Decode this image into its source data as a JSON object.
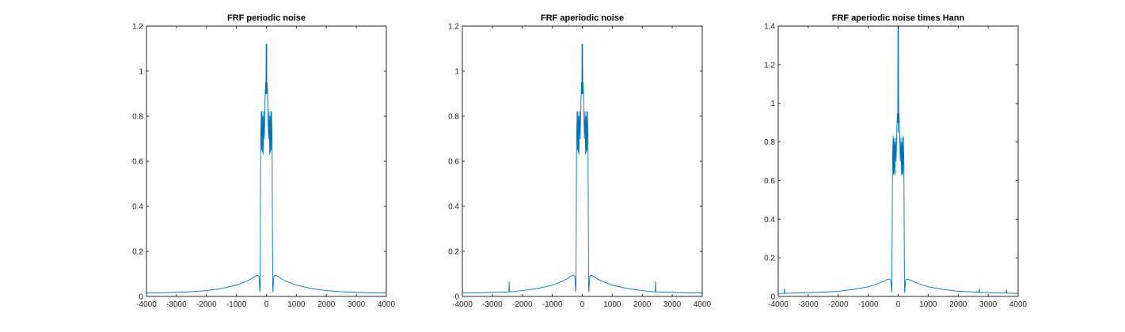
{
  "chart_data": [
    {
      "type": "line",
      "title": "FRF periodic noise",
      "xlim": [
        -4000,
        4000
      ],
      "ylim": [
        0,
        1.2
      ],
      "xticks": [
        -4000,
        -3000,
        -2000,
        -1000,
        0,
        1000,
        2000,
        3000,
        4000
      ],
      "yticks": [
        0,
        0.2,
        0.4,
        0.6,
        0.8,
        1,
        1.2
      ],
      "ytick_labels": [
        "0",
        "0.2",
        "0.4",
        "0.6",
        "0.8",
        "1",
        "1.2"
      ],
      "xlabel": "",
      "ylabel": "",
      "series": [
        {
          "color": "#0072BD",
          "x": [
            -4000,
            -3500,
            -3000,
            -2500,
            -2000,
            -1500,
            -1000,
            -700,
            -500,
            -400,
            -300,
            -250,
            -230,
            -220,
            -210,
            -200,
            -190,
            -170,
            -160,
            -150,
            -140,
            -120,
            -110,
            -90,
            -70,
            -55,
            -40,
            -25,
            -15,
            -10,
            -5,
            0,
            5,
            10,
            15,
            25,
            40,
            55,
            70,
            90,
            110,
            120,
            140,
            150,
            160,
            170,
            190,
            200,
            210,
            220,
            230,
            250,
            300,
            400,
            500,
            700,
            1000,
            1500,
            2000,
            2500,
            3000,
            3500,
            4000
          ],
          "y": [
            0.015,
            0.016,
            0.018,
            0.021,
            0.026,
            0.035,
            0.05,
            0.065,
            0.078,
            0.088,
            0.095,
            0.09,
            0.05,
            0.02,
            0.05,
            0.35,
            0.7,
            0.82,
            0.65,
            0.82,
            0.64,
            0.8,
            0.63,
            0.82,
            0.7,
            0.8,
            0.9,
            0.95,
            0.9,
            1.12,
            0.95,
            0.9,
            0.95,
            1.12,
            0.9,
            0.95,
            0.9,
            0.8,
            0.7,
            0.82,
            0.63,
            0.8,
            0.64,
            0.82,
            0.65,
            0.82,
            0.7,
            0.35,
            0.05,
            0.02,
            0.05,
            0.09,
            0.095,
            0.088,
            0.078,
            0.065,
            0.05,
            0.035,
            0.026,
            0.021,
            0.018,
            0.016,
            0.015
          ]
        }
      ]
    },
    {
      "type": "line",
      "title": "FRF aperiodic noise",
      "xlim": [
        -4000,
        4000
      ],
      "ylim": [
        0,
        1.2
      ],
      "xticks": [
        -4000,
        -3000,
        -2000,
        -1000,
        0,
        1000,
        2000,
        3000,
        4000
      ],
      "yticks": [
        0,
        0.2,
        0.4,
        0.6,
        0.8,
        1,
        1.2
      ],
      "ytick_labels": [
        "0",
        "0.2",
        "0.4",
        "0.6",
        "0.8",
        "1",
        "1.2"
      ],
      "xlabel": "",
      "ylabel": "",
      "series": [
        {
          "color": "#0072BD",
          "x": [
            -4000,
            -3500,
            -3000,
            -2450,
            -2440,
            -2430,
            -2000,
            -1500,
            -1000,
            -700,
            -500,
            -400,
            -300,
            -250,
            -230,
            -220,
            -210,
            -200,
            -190,
            -170,
            -160,
            -150,
            -140,
            -120,
            -110,
            -90,
            -70,
            -55,
            -40,
            -25,
            -15,
            -10,
            -5,
            0,
            5,
            10,
            15,
            25,
            40,
            55,
            70,
            90,
            110,
            120,
            140,
            150,
            160,
            170,
            190,
            200,
            210,
            220,
            230,
            250,
            300,
            400,
            500,
            700,
            1000,
            1500,
            2000,
            2430,
            2440,
            2450,
            3000,
            3500,
            4000
          ],
          "y": [
            0.015,
            0.016,
            0.018,
            0.02,
            0.065,
            0.02,
            0.026,
            0.035,
            0.05,
            0.065,
            0.078,
            0.088,
            0.095,
            0.09,
            0.05,
            0.02,
            0.05,
            0.35,
            0.7,
            0.82,
            0.65,
            0.82,
            0.64,
            0.8,
            0.63,
            0.82,
            0.7,
            0.8,
            0.9,
            0.95,
            0.9,
            1.12,
            0.95,
            0.9,
            0.95,
            1.12,
            0.9,
            0.95,
            0.9,
            0.8,
            0.7,
            0.82,
            0.63,
            0.8,
            0.64,
            0.82,
            0.65,
            0.82,
            0.7,
            0.35,
            0.05,
            0.02,
            0.05,
            0.09,
            0.095,
            0.088,
            0.078,
            0.065,
            0.05,
            0.035,
            0.026,
            0.02,
            0.065,
            0.02,
            0.018,
            0.016,
            0.015
          ]
        }
      ]
    },
    {
      "type": "line",
      "title": "FRF aperiodic noise times Hann",
      "xlim": [
        -4000,
        4000
      ],
      "ylim": [
        0,
        1.4
      ],
      "xticks": [
        -4000,
        -3000,
        -2000,
        -1000,
        0,
        1000,
        2000,
        3000,
        4000
      ],
      "yticks": [
        0,
        0.2,
        0.4,
        0.6,
        0.8,
        1,
        1.2,
        1.4
      ],
      "ytick_labels": [
        "0",
        "0.2",
        "0.4",
        "0.6",
        "0.8",
        "1",
        "1.2",
        "1.4"
      ],
      "xlabel": "",
      "ylabel": "",
      "series": [
        {
          "color": "#0072BD",
          "x": [
            -4000,
            -3800,
            -3790,
            -3780,
            -3500,
            -3000,
            -2500,
            -2000,
            -1500,
            -1000,
            -700,
            -500,
            -400,
            -300,
            -250,
            -230,
            -220,
            -210,
            -200,
            -190,
            -170,
            -160,
            -150,
            -140,
            -120,
            -110,
            -90,
            -70,
            -55,
            -40,
            -25,
            -15,
            -8,
            -3,
            0,
            3,
            8,
            15,
            25,
            40,
            55,
            70,
            90,
            110,
            120,
            140,
            150,
            160,
            170,
            190,
            200,
            210,
            220,
            230,
            250,
            300,
            400,
            500,
            700,
            1000,
            1500,
            2000,
            2700,
            2710,
            2720,
            3000,
            3500,
            3600,
            3610,
            3620,
            4000
          ],
          "y": [
            0.015,
            0.016,
            0.04,
            0.016,
            0.017,
            0.019,
            0.022,
            0.027,
            0.036,
            0.05,
            0.065,
            0.078,
            0.085,
            0.09,
            0.085,
            0.05,
            0.02,
            0.05,
            0.35,
            0.7,
            0.83,
            0.63,
            0.82,
            0.64,
            0.8,
            0.63,
            0.82,
            0.7,
            0.8,
            0.9,
            0.95,
            0.9,
            1.4,
            0.9,
            0.85,
            0.9,
            1.4,
            0.9,
            0.95,
            0.9,
            0.8,
            0.7,
            0.82,
            0.63,
            0.8,
            0.64,
            0.82,
            0.63,
            0.83,
            0.7,
            0.35,
            0.05,
            0.02,
            0.05,
            0.085,
            0.09,
            0.085,
            0.078,
            0.065,
            0.05,
            0.036,
            0.027,
            0.022,
            0.04,
            0.022,
            0.019,
            0.017,
            0.017,
            0.035,
            0.017,
            0.015
          ]
        }
      ]
    }
  ]
}
